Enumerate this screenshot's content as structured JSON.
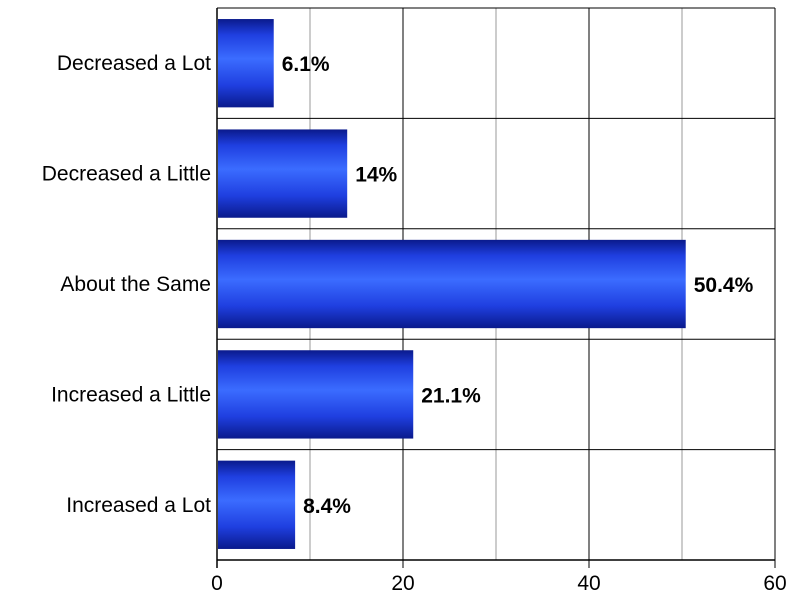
{
  "chart_data": {
    "type": "bar",
    "orientation": "horizontal",
    "categories": [
      "Decreased a Lot",
      "Decreased a Little",
      "About the Same",
      "Increased a Little",
      "Increased a Lot"
    ],
    "values": [
      6.1,
      14,
      50.4,
      21.1,
      8.4
    ],
    "value_labels": [
      "6.1%",
      "14%",
      "50.4%",
      "21.1%",
      "8.4%"
    ],
    "x_ticks": [
      0,
      20,
      40,
      60
    ],
    "x_tick_labels": [
      "0",
      "20",
      "40",
      "60"
    ],
    "xlim": [
      0,
      60
    ],
    "minor_gridlines": [
      10,
      30,
      50
    ],
    "title": "",
    "xlabel": "",
    "ylabel": "",
    "grid": true,
    "legend": "none",
    "colors": {
      "bar_dark": "#0a1a8c",
      "bar_mid": "#1f3fe0",
      "bar_light": "#3b6cff",
      "major_grid": "#000000",
      "minor_grid": "#9a9a9a",
      "background": "#ffffff"
    }
  }
}
